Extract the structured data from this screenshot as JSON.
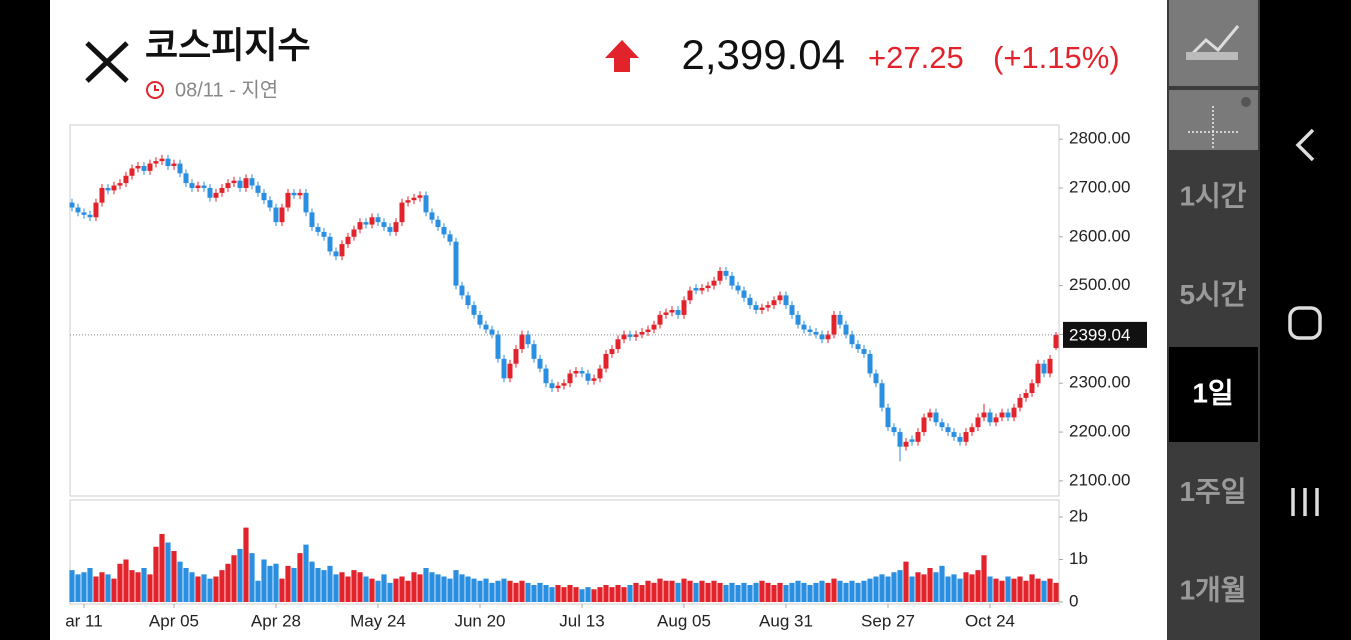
{
  "header": {
    "title": "코스피지수",
    "date": "08/11 - 지연",
    "price": "2,399.04",
    "change": "+27.25",
    "change_pct": "(+1.15%)"
  },
  "sidebar": {
    "buttons": [
      "1시간",
      "5시간",
      "1일",
      "1주일",
      "1개월"
    ],
    "selected": 2
  },
  "chart_data": {
    "type": "candlestick",
    "candles": [
      [
        2670,
        2678,
        2652,
        2660
      ],
      [
        2660,
        2668,
        2642,
        2650
      ],
      [
        2650,
        2658,
        2637,
        2645
      ],
      [
        2645,
        2653,
        2632,
        2640
      ],
      [
        2640,
        2678,
        2632,
        2670
      ],
      [
        2670,
        2708,
        2662,
        2700
      ],
      [
        2700,
        2708,
        2687,
        2695
      ],
      [
        2695,
        2713,
        2687,
        2705
      ],
      [
        2705,
        2718,
        2697,
        2710
      ],
      [
        2710,
        2733,
        2702,
        2725
      ],
      [
        2725,
        2748,
        2717,
        2740
      ],
      [
        2740,
        2753,
        2732,
        2745
      ],
      [
        2745,
        2753,
        2727,
        2735
      ],
      [
        2735,
        2758,
        2727,
        2750
      ],
      [
        2750,
        2763,
        2742,
        2755
      ],
      [
        2755,
        2768,
        2747,
        2760
      ],
      [
        2760,
        2768,
        2737,
        2745
      ],
      [
        2745,
        2758,
        2737,
        2750
      ],
      [
        2750,
        2758,
        2722,
        2730
      ],
      [
        2730,
        2738,
        2702,
        2710
      ],
      [
        2710,
        2718,
        2692,
        2700
      ],
      [
        2700,
        2713,
        2692,
        2705
      ],
      [
        2705,
        2713,
        2692,
        2700
      ],
      [
        2700,
        2708,
        2672,
        2680
      ],
      [
        2680,
        2698,
        2672,
        2690
      ],
      [
        2690,
        2708,
        2682,
        2700
      ],
      [
        2700,
        2718,
        2692,
        2710
      ],
      [
        2710,
        2723,
        2702,
        2715
      ],
      [
        2715,
        2723,
        2692,
        2700
      ],
      [
        2700,
        2728,
        2692,
        2720
      ],
      [
        2720,
        2728,
        2697,
        2705
      ],
      [
        2705,
        2713,
        2682,
        2690
      ],
      [
        2690,
        2698,
        2667,
        2675
      ],
      [
        2675,
        2683,
        2652,
        2660
      ],
      [
        2660,
        2668,
        2622,
        2630
      ],
      [
        2630,
        2668,
        2622,
        2660
      ],
      [
        2660,
        2698,
        2652,
        2690
      ],
      [
        2690,
        2698,
        2677,
        2685
      ],
      [
        2685,
        2698,
        2677,
        2690
      ],
      [
        2690,
        2698,
        2642,
        2650
      ],
      [
        2650,
        2658,
        2612,
        2620
      ],
      [
        2620,
        2628,
        2602,
        2610
      ],
      [
        2610,
        2618,
        2592,
        2600
      ],
      [
        2600,
        2608,
        2562,
        2570
      ],
      [
        2570,
        2578,
        2552,
        2560
      ],
      [
        2560,
        2593,
        2552,
        2585
      ],
      [
        2585,
        2608,
        2577,
        2600
      ],
      [
        2600,
        2623,
        2592,
        2615
      ],
      [
        2615,
        2638,
        2607,
        2630
      ],
      [
        2630,
        2638,
        2617,
        2625
      ],
      [
        2625,
        2648,
        2617,
        2640
      ],
      [
        2640,
        2648,
        2622,
        2630
      ],
      [
        2630,
        2638,
        2612,
        2620
      ],
      [
        2620,
        2628,
        2602,
        2610
      ],
      [
        2610,
        2638,
        2602,
        2630
      ],
      [
        2630,
        2678,
        2622,
        2670
      ],
      [
        2670,
        2683,
        2662,
        2675
      ],
      [
        2675,
        2688,
        2667,
        2680
      ],
      [
        2680,
        2693,
        2672,
        2685
      ],
      [
        2685,
        2693,
        2642,
        2650
      ],
      [
        2650,
        2658,
        2627,
        2635
      ],
      [
        2635,
        2643,
        2612,
        2620
      ],
      [
        2620,
        2628,
        2597,
        2605
      ],
      [
        2605,
        2613,
        2582,
        2590
      ],
      [
        2590,
        2598,
        2492,
        2500
      ],
      [
        2500,
        2508,
        2472,
        2480
      ],
      [
        2480,
        2488,
        2452,
        2460
      ],
      [
        2460,
        2468,
        2432,
        2440
      ],
      [
        2440,
        2448,
        2412,
        2420
      ],
      [
        2420,
        2428,
        2402,
        2410
      ],
      [
        2410,
        2418,
        2392,
        2400
      ],
      [
        2400,
        2408,
        2342,
        2350
      ],
      [
        2350,
        2358,
        2302,
        2310
      ],
      [
        2310,
        2348,
        2302,
        2340
      ],
      [
        2340,
        2378,
        2332,
        2370
      ],
      [
        2370,
        2408,
        2362,
        2400
      ],
      [
        2400,
        2408,
        2372,
        2380
      ],
      [
        2380,
        2388,
        2342,
        2350
      ],
      [
        2350,
        2358,
        2322,
        2330
      ],
      [
        2330,
        2338,
        2292,
        2300
      ],
      [
        2300,
        2308,
        2282,
        2290
      ],
      [
        2290,
        2303,
        2282,
        2295
      ],
      [
        2295,
        2308,
        2287,
        2300
      ],
      [
        2300,
        2328,
        2292,
        2320
      ],
      [
        2320,
        2333,
        2312,
        2325
      ],
      [
        2325,
        2333,
        2312,
        2320
      ],
      [
        2320,
        2328,
        2297,
        2305
      ],
      [
        2305,
        2318,
        2297,
        2310
      ],
      [
        2310,
        2338,
        2302,
        2330
      ],
      [
        2330,
        2368,
        2322,
        2360
      ],
      [
        2360,
        2378,
        2352,
        2370
      ],
      [
        2370,
        2398,
        2362,
        2390
      ],
      [
        2390,
        2408,
        2382,
        2400
      ],
      [
        2400,
        2408,
        2387,
        2395
      ],
      [
        2395,
        2408,
        2387,
        2400
      ],
      [
        2400,
        2413,
        2392,
        2405
      ],
      [
        2405,
        2418,
        2397,
        2410
      ],
      [
        2410,
        2428,
        2402,
        2420
      ],
      [
        2420,
        2448,
        2412,
        2440
      ],
      [
        2440,
        2453,
        2432,
        2445
      ],
      [
        2445,
        2458,
        2437,
        2450
      ],
      [
        2450,
        2458,
        2432,
        2440
      ],
      [
        2440,
        2478,
        2432,
        2470
      ],
      [
        2470,
        2498,
        2462,
        2490
      ],
      [
        2495,
        2503,
        2482,
        2490
      ],
      [
        2490,
        2503,
        2482,
        2495
      ],
      [
        2495,
        2508,
        2487,
        2500
      ],
      [
        2500,
        2518,
        2492,
        2510
      ],
      [
        2510,
        2538,
        2502,
        2530
      ],
      [
        2530,
        2538,
        2512,
        2520
      ],
      [
        2520,
        2528,
        2492,
        2500
      ],
      [
        2500,
        2508,
        2482,
        2490
      ],
      [
        2490,
        2498,
        2467,
        2475
      ],
      [
        2475,
        2483,
        2452,
        2460
      ],
      [
        2460,
        2468,
        2442,
        2450
      ],
      [
        2450,
        2463,
        2442,
        2455
      ],
      [
        2455,
        2468,
        2447,
        2460
      ],
      [
        2460,
        2478,
        2452,
        2470
      ],
      [
        2470,
        2488,
        2462,
        2480
      ],
      [
        2480,
        2488,
        2452,
        2460
      ],
      [
        2460,
        2468,
        2432,
        2440
      ],
      [
        2440,
        2448,
        2412,
        2420
      ],
      [
        2420,
        2428,
        2402,
        2410
      ],
      [
        2410,
        2418,
        2397,
        2405
      ],
      [
        2405,
        2413,
        2392,
        2400
      ],
      [
        2400,
        2408,
        2382,
        2390
      ],
      [
        2390,
        2408,
        2382,
        2400
      ],
      [
        2400,
        2448,
        2392,
        2440
      ],
      [
        2440,
        2448,
        2412,
        2420
      ],
      [
        2420,
        2428,
        2392,
        2400
      ],
      [
        2400,
        2408,
        2372,
        2380
      ],
      [
        2380,
        2388,
        2362,
        2370
      ],
      [
        2370,
        2378,
        2352,
        2360
      ],
      [
        2360,
        2368,
        2312,
        2320
      ],
      [
        2320,
        2328,
        2292,
        2300
      ],
      [
        2300,
        2308,
        2242,
        2250
      ],
      [
        2250,
        2258,
        2202,
        2210
      ],
      [
        2210,
        2218,
        2192,
        2200
      ],
      [
        2200,
        2208,
        2140,
        2170
      ],
      [
        2170,
        2188,
        2162,
        2180
      ],
      [
        2185,
        2193,
        2172,
        2180
      ],
      [
        2180,
        2208,
        2172,
        2200
      ],
      [
        2200,
        2238,
        2192,
        2230
      ],
      [
        2230,
        2248,
        2222,
        2240
      ],
      [
        2240,
        2248,
        2212,
        2220
      ],
      [
        2220,
        2228,
        2202,
        2210
      ],
      [
        2210,
        2218,
        2192,
        2200
      ],
      [
        2200,
        2208,
        2182,
        2190
      ],
      [
        2190,
        2198,
        2172,
        2180
      ],
      [
        2180,
        2208,
        2172,
        2200
      ],
      [
        2200,
        2218,
        2192,
        2210
      ],
      [
        2210,
        2238,
        2202,
        2230
      ],
      [
        2230,
        2258,
        2222,
        2240
      ],
      [
        2240,
        2248,
        2212,
        2220
      ],
      [
        2220,
        2238,
        2212,
        2230
      ],
      [
        2230,
        2248,
        2222,
        2240
      ],
      [
        2240,
        2248,
        2222,
        2230
      ],
      [
        2230,
        2258,
        2222,
        2250
      ],
      [
        2250,
        2278,
        2242,
        2270
      ],
      [
        2270,
        2288,
        2262,
        2280
      ],
      [
        2280,
        2308,
        2272,
        2300
      ],
      [
        2300,
        2348,
        2292,
        2340
      ],
      [
        2340,
        2348,
        2312,
        2320
      ],
      [
        2320,
        2358,
        2312,
        2350
      ],
      [
        2372,
        2405,
        2368,
        2399.04
      ]
    ],
    "volumes": [
      0.75,
      0.65,
      0.7,
      0.8,
      0.6,
      0.7,
      0.65,
      0.55,
      0.9,
      1.0,
      0.75,
      0.7,
      0.8,
      0.65,
      1.3,
      1.6,
      1.4,
      1.2,
      0.95,
      0.8,
      0.7,
      0.6,
      0.65,
      0.55,
      0.6,
      0.75,
      0.9,
      1.1,
      1.25,
      1.75,
      1.15,
      0.5,
      1.0,
      0.85,
      0.9,
      0.55,
      0.85,
      0.8,
      1.15,
      1.35,
      0.95,
      0.8,
      0.75,
      0.85,
      0.65,
      0.7,
      0.6,
      0.75,
      0.7,
      0.6,
      0.55,
      0.5,
      0.65,
      0.45,
      0.55,
      0.6,
      0.5,
      0.7,
      0.65,
      0.8,
      0.7,
      0.65,
      0.6,
      0.55,
      0.75,
      0.65,
      0.6,
      0.55,
      0.5,
      0.55,
      0.45,
      0.5,
      0.55,
      0.5,
      0.45,
      0.5,
      0.45,
      0.4,
      0.45,
      0.4,
      0.35,
      0.4,
      0.35,
      0.4,
      0.35,
      0.3,
      0.35,
      0.3,
      0.35,
      0.4,
      0.35,
      0.4,
      0.35,
      0.4,
      0.45,
      0.4,
      0.5,
      0.45,
      0.55,
      0.5,
      0.5,
      0.45,
      0.55,
      0.5,
      0.45,
      0.5,
      0.45,
      0.5,
      0.45,
      0.4,
      0.45,
      0.4,
      0.45,
      0.4,
      0.45,
      0.5,
      0.45,
      0.4,
      0.45,
      0.4,
      0.45,
      0.5,
      0.45,
      0.4,
      0.45,
      0.5,
      0.45,
      0.55,
      0.5,
      0.45,
      0.5,
      0.45,
      0.5,
      0.55,
      0.6,
      0.65,
      0.6,
      0.7,
      0.75,
      0.95,
      0.6,
      0.7,
      0.65,
      0.8,
      0.7,
      0.85,
      0.6,
      0.65,
      0.55,
      0.7,
      0.65,
      0.75,
      1.1,
      0.6,
      0.55,
      0.5,
      0.6,
      0.55,
      0.6,
      0.5,
      0.65,
      0.55,
      0.5,
      0.55,
      0.45
    ],
    "up_color": "#e3232c",
    "down_color": "#2a8fe0",
    "ylim": [
      2069,
      2829
    ],
    "yticks": [
      {
        "value": 2100,
        "label": "2100.00"
      },
      {
        "value": 2200,
        "label": "2200.00"
      },
      {
        "value": 2300,
        "label": "2300.00"
      },
      {
        "value": 2400,
        "label": "2400.00"
      },
      {
        "value": 2500,
        "label": "2500.00"
      },
      {
        "value": 2600,
        "label": "2600.00"
      },
      {
        "value": 2700,
        "label": "2700.00"
      },
      {
        "value": 2800,
        "label": "2800.00"
      }
    ],
    "volume_ylim": [
      0,
      2.4
    ],
    "volume_ticks": [
      0,
      {
        "value": 1,
        "label": "1b"
      },
      {
        "value": 2,
        "label": "2b"
      }
    ],
    "xlim": [
      -0.33,
      164.5
    ],
    "xticks": [
      {
        "value": 2,
        "label": "ar 11"
      },
      {
        "value": 17,
        "label": "Apr 05"
      },
      {
        "value": 34,
        "label": "Apr 28"
      },
      {
        "value": 51,
        "label": "May 24"
      },
      {
        "value": 68,
        "label": "Jun 20"
      },
      {
        "value": 85,
        "label": "Jul 13"
      },
      {
        "value": 102,
        "label": "Aug 05"
      },
      {
        "value": 119,
        "label": "Aug 31"
      },
      {
        "value": 136,
        "label": "Sep 27"
      },
      {
        "value": 153,
        "label": "Oct 24"
      }
    ],
    "last_price_line": true
  }
}
